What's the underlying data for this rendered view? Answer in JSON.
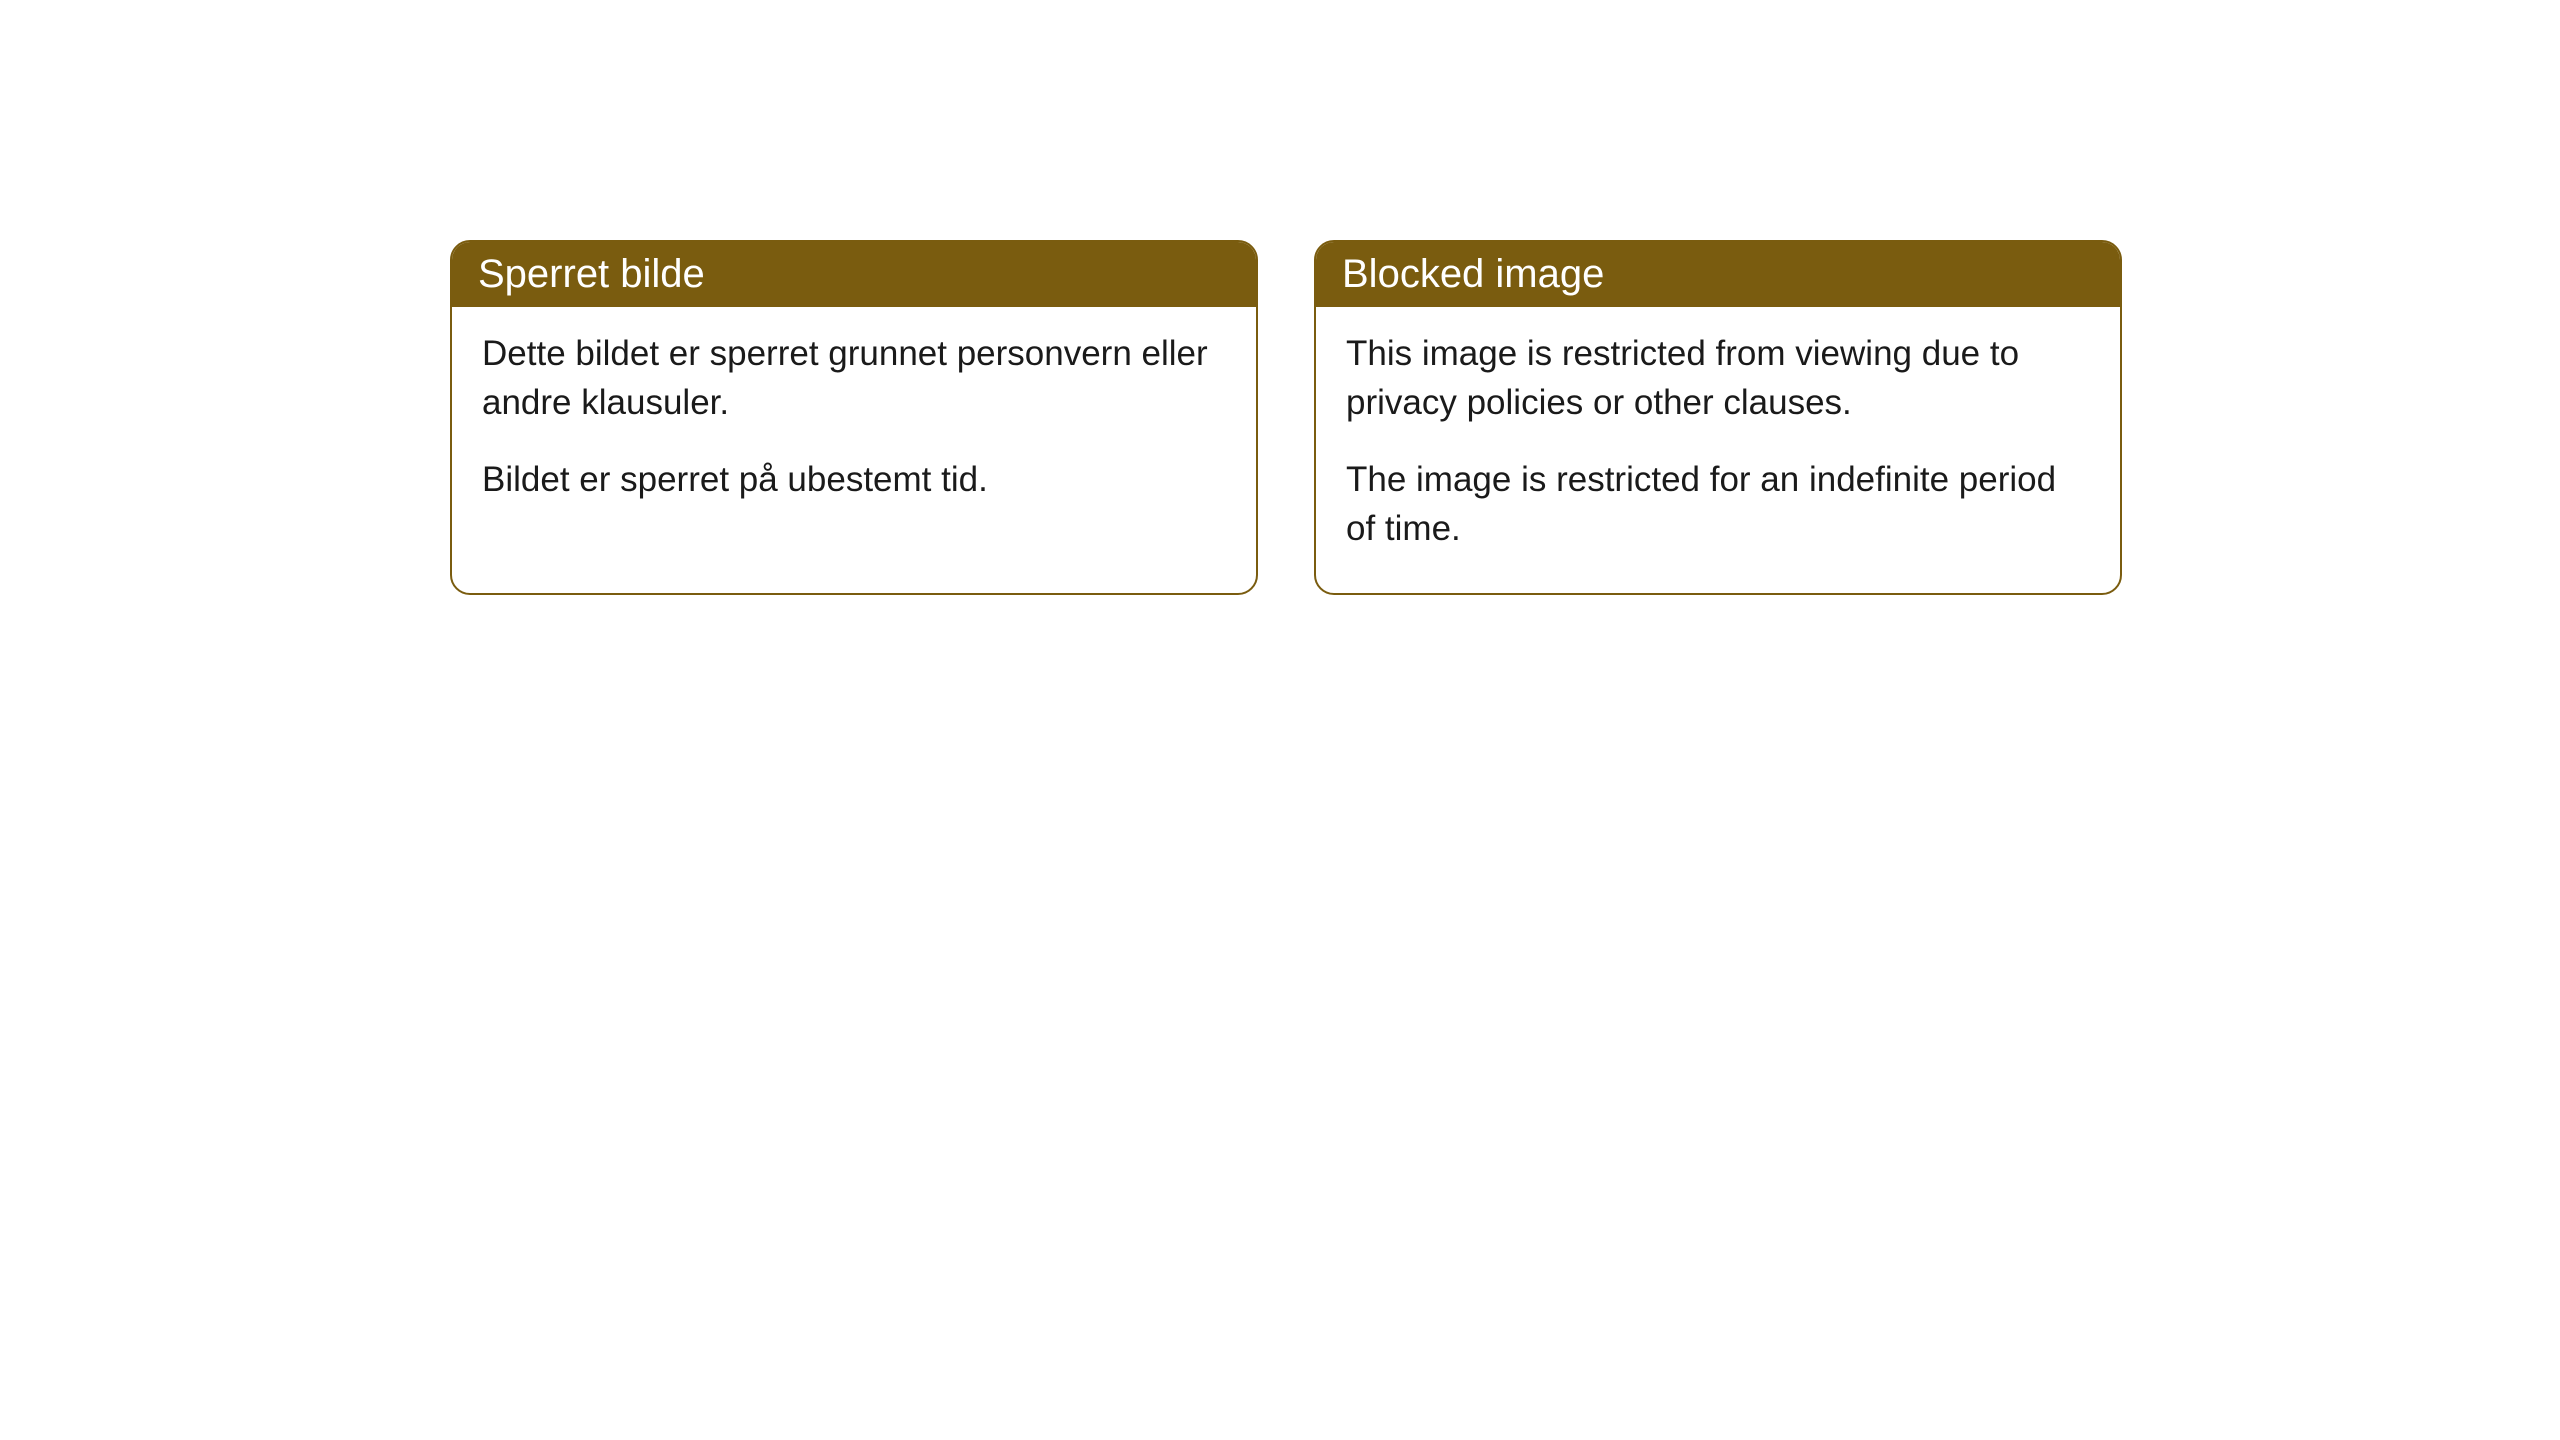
{
  "cards": [
    {
      "title": "Sperret bilde",
      "paragraph1": "Dette bildet er sperret grunnet personvern eller andre klausuler.",
      "paragraph2": "Bildet er sperret på ubestemt tid."
    },
    {
      "title": "Blocked image",
      "paragraph1": "This image is restricted from viewing due to privacy policies or other clauses.",
      "paragraph2": "The image is restricted for an indefinite period of time."
    }
  ],
  "style": {
    "header_bg_color": "#7a5c0f",
    "header_text_color": "#ffffff",
    "border_color": "#7a5c0f",
    "body_bg_color": "#ffffff",
    "body_text_color": "#1a1a1a",
    "border_radius": "20px",
    "title_fontsize": 40,
    "body_fontsize": 35
  }
}
